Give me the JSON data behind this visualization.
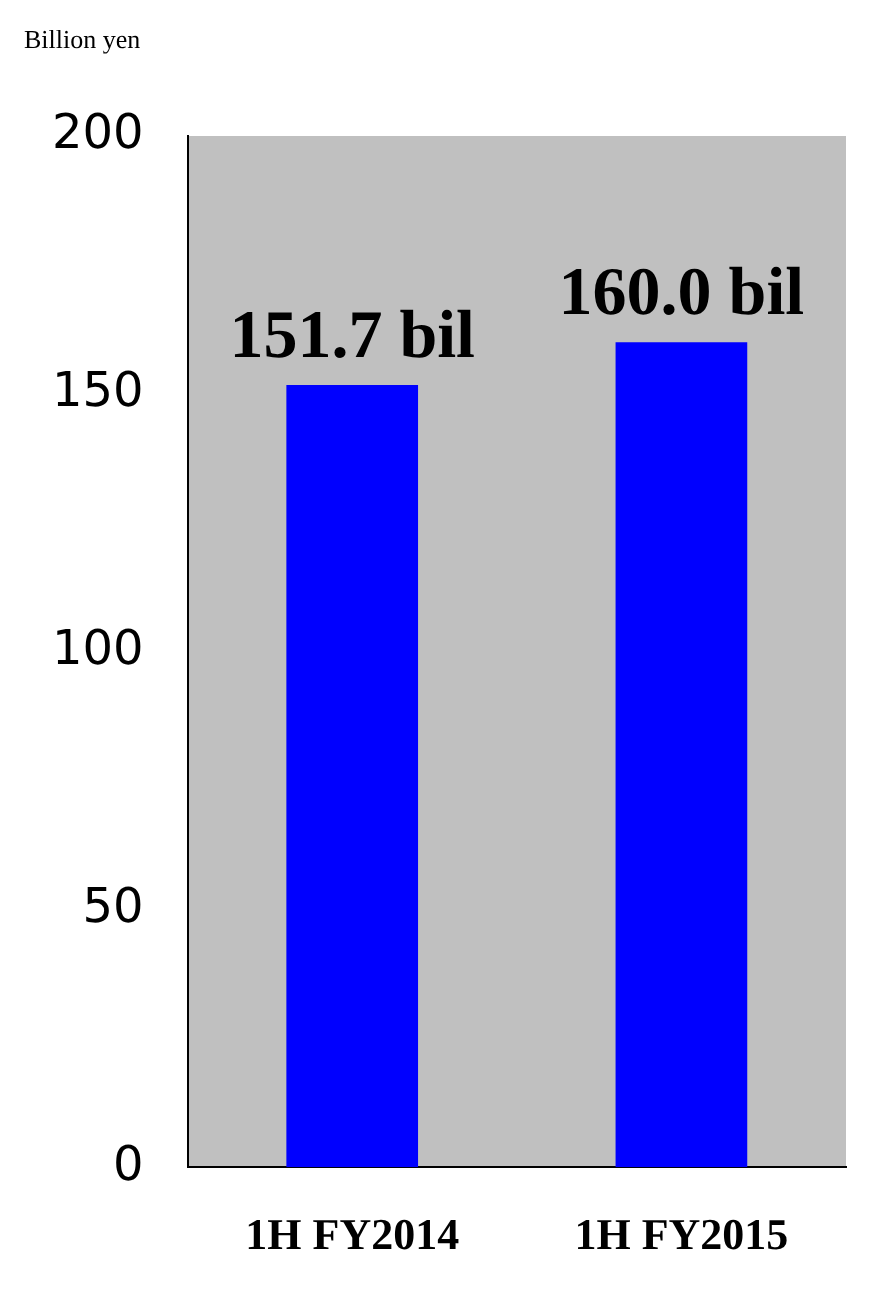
{
  "chart_data": {
    "type": "bar",
    "ylabel": "Billion yen",
    "categories": [
      "1H FY2014",
      "1H FY2015"
    ],
    "values": [
      151.7,
      160.0
    ],
    "value_labels": [
      "151.7 bil",
      "160.0 bil"
    ],
    "color": "#0000ff",
    "ylim": [
      0,
      200
    ],
    "yticks": [
      0,
      50,
      100,
      150,
      200
    ],
    "grid": false,
    "legend": false
  }
}
